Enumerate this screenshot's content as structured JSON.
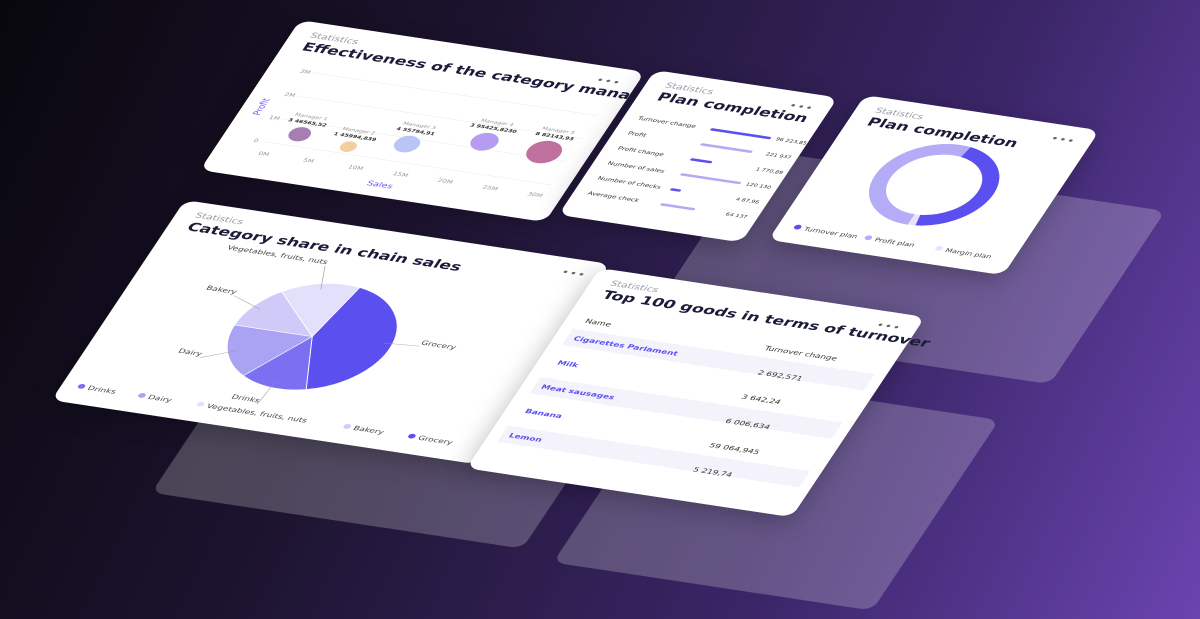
{
  "cards": {
    "manager": {
      "label": "Statistics",
      "title": "Effectiveness of the category manager",
      "y_axis": "Profit",
      "x_axis": "Sales",
      "y_ticks": [
        "3M",
        "2M",
        "1M",
        "0"
      ],
      "x_ticks": [
        "0M",
        "5M",
        "10M",
        "15M",
        "20M",
        "25M",
        "30M"
      ],
      "managers": [
        {
          "name": "Manager 1",
          "value": "3 46565,52"
        },
        {
          "name": "Manager 2",
          "value": "1 45994,839"
        },
        {
          "name": "Manager 3",
          "value": "4 55794,91"
        },
        {
          "name": "Manager 4",
          "value": "3 95425,8230"
        },
        {
          "name": "Manager 5",
          "value": "8 82143,93"
        }
      ]
    },
    "plan_bars": {
      "label": "Statistics",
      "title": "Plan completion",
      "rows": [
        {
          "name": "Turnover change",
          "value": "96 223,85"
        },
        {
          "name": "Profit",
          "value": "221 937"
        },
        {
          "name": "Profit change",
          "value": "1 770,89"
        },
        {
          "name": "Number of sales",
          "value": "120 130"
        },
        {
          "name": "Number of checks",
          "value": "4 87,96"
        },
        {
          "name": "Average check",
          "value": "64 137"
        }
      ]
    },
    "plan_donut": {
      "label": "Statistics",
      "title": "Plan completion",
      "legend": [
        "Turnover plan",
        "Profit plan",
        "Margin plan"
      ]
    },
    "category_share": {
      "label": "Statistics",
      "title": "Category share in chain sales",
      "slices": [
        "Grocery",
        "Vegetables, fruits, nuts",
        "Bakery",
        "Dairy",
        "Drinks"
      ],
      "legend": [
        "Drinks",
        "Dairy",
        "Vegetables, fruits, nuts",
        "Bakery",
        "Grocery"
      ]
    },
    "top_goods": {
      "label": "Statistics",
      "title": "Top 100 goods in terms of turnover",
      "columns": [
        "Name",
        "Turnover change"
      ],
      "rows": [
        [
          "Cigarettes Parlament",
          "2 692,571"
        ],
        [
          "Milk",
          "3 642,24"
        ],
        [
          "Meat sausages",
          "6 006,634"
        ],
        [
          "Banana",
          "59 064,945"
        ],
        [
          "Lemon",
          "5 219,74"
        ]
      ]
    }
  }
}
